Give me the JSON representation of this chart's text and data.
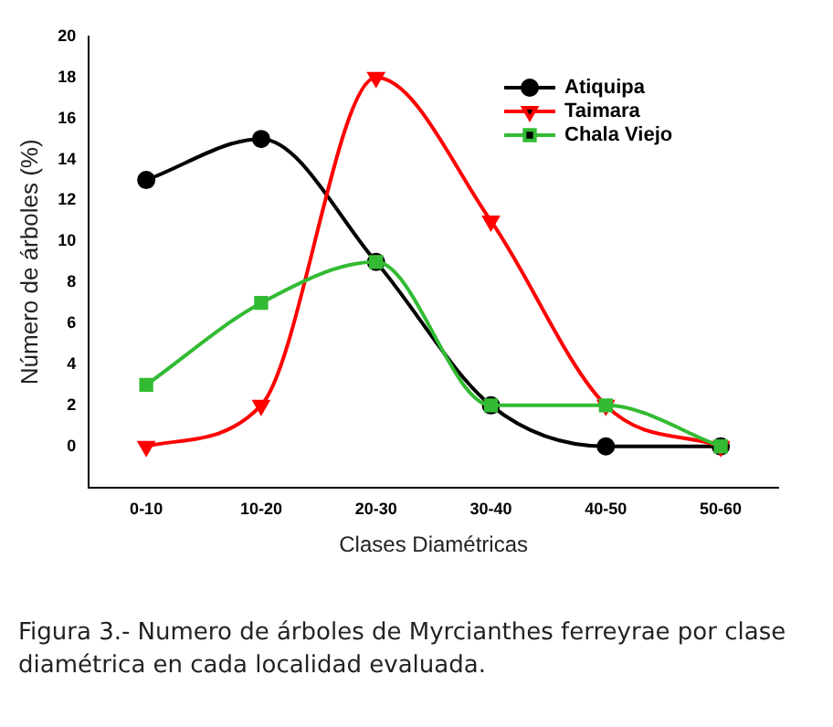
{
  "chart_data": {
    "type": "line",
    "xlabel": "Clases Diamétricas",
    "ylabel": "Número de árboles (%)",
    "categories": [
      "0-10",
      "10-20",
      "20-30",
      "30-40",
      "40-50",
      "50-60"
    ],
    "series": [
      {
        "name": "Atiquipa",
        "color": "#000000",
        "marker": "circle",
        "values": [
          13,
          15,
          9,
          2,
          0,
          0
        ]
      },
      {
        "name": "Taimara",
        "color": "#ff0000",
        "marker": "triangle",
        "values": [
          0,
          2,
          18,
          11,
          2,
          0
        ]
      },
      {
        "name": "Chala Viejo",
        "color": "#33bb33",
        "marker": "square",
        "values": [
          3,
          7,
          9,
          2,
          2,
          0
        ]
      }
    ],
    "ylim": [
      -2,
      20
    ],
    "yticks": [
      0,
      2,
      4,
      6,
      8,
      10,
      12,
      14,
      16,
      18,
      20
    ],
    "grid": false,
    "legend": "top right",
    "annotations": [
      "Figura 3.- Numero de árboles de Myrcianthes ferreyrae por clase diamétrica en cada localidad evaluada."
    ]
  }
}
